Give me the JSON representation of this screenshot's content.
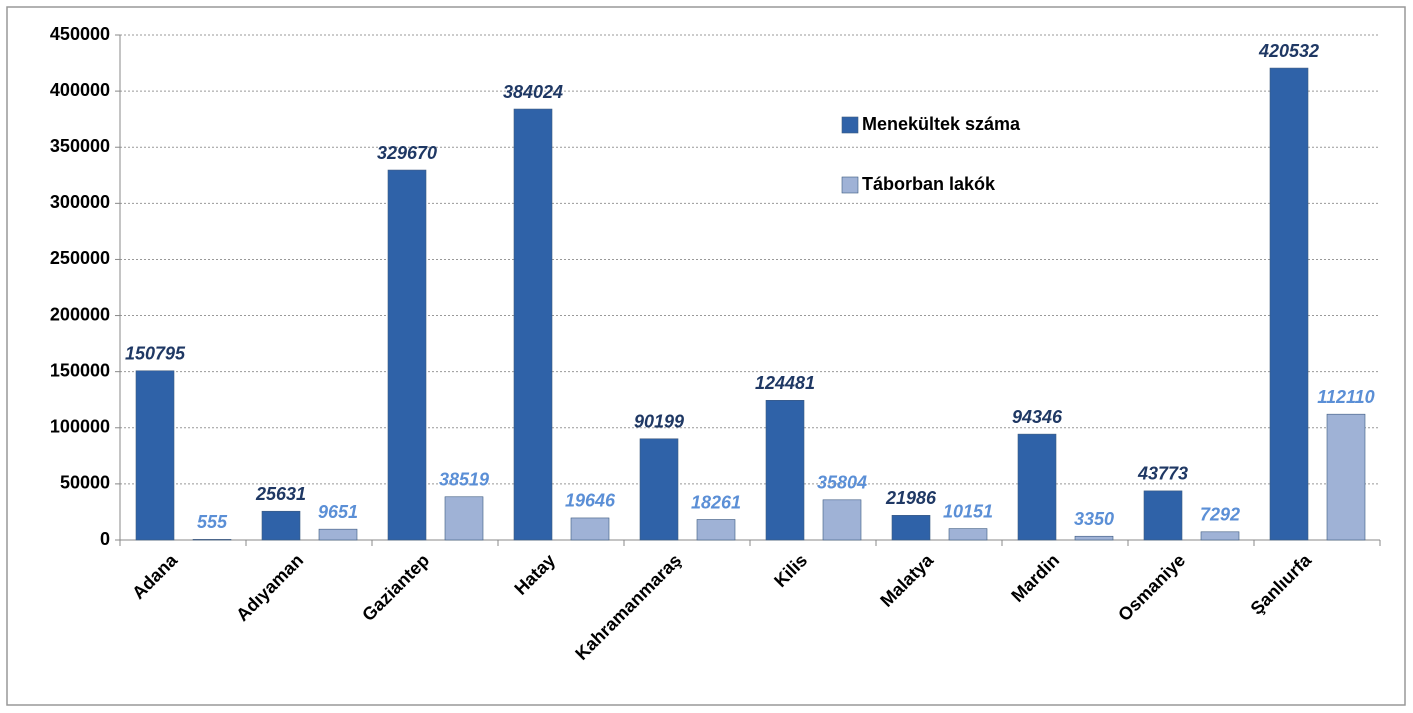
{
  "chart_data": {
    "type": "bar",
    "categories": [
      "Adana",
      "Adıyaman",
      "Gaziantep",
      "Hatay",
      "Kahramanmaraş",
      "Kilis",
      "Malatya",
      "Mardin",
      "Osmaniye",
      "Şanlıurfa"
    ],
    "series": [
      {
        "name": "Menekültek száma",
        "color": "#2f62a8",
        "label_color": "#1f3864",
        "values": [
          150795,
          25631,
          329670,
          384024,
          90199,
          124481,
          21986,
          94346,
          43773,
          420532
        ]
      },
      {
        "name": "Táborban lakók",
        "color": "#9fb2d6",
        "label_color": "#5b8fd6",
        "values": [
          555,
          9651,
          38519,
          19646,
          18261,
          35804,
          10151,
          3350,
          7292,
          112110
        ]
      }
    ],
    "ylim": [
      0,
      450000
    ],
    "yticks": [
      0,
      50000,
      100000,
      150000,
      200000,
      250000,
      300000,
      350000,
      400000,
      450000
    ],
    "grid": true
  }
}
